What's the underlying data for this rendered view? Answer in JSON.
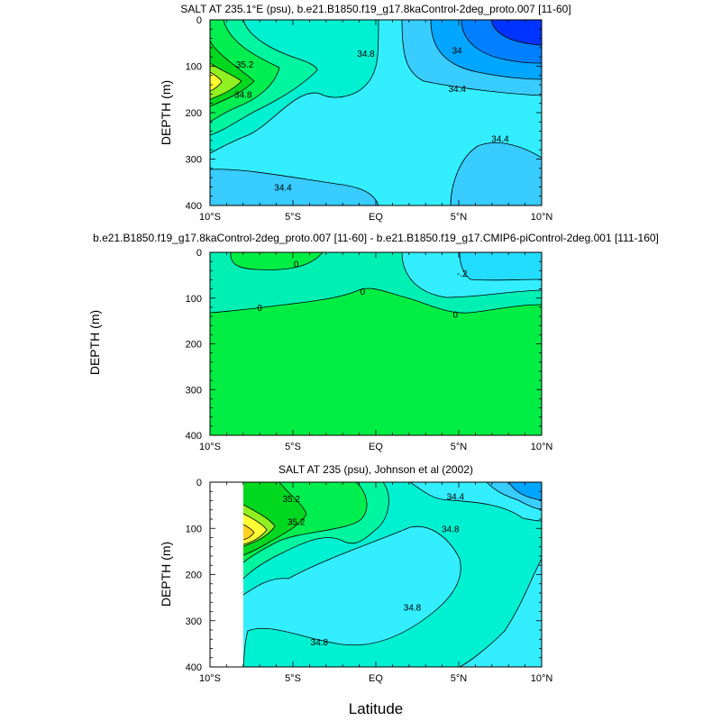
{
  "figure": {
    "xlabel": "Latitude",
    "shared_ylabel": "DEPTH (m)",
    "colors": {
      "s33_8": "#0033ff",
      "s34_0": "#0080ff",
      "s34_2": "#00a6ff",
      "s34_4": "#38ccff",
      "s34_6": "#33eeff",
      "s34_8": "#00f0d2",
      "s35_0": "#00f5a0",
      "s35_2": "#00ee50",
      "s35_4": "#00d820",
      "s35_6": "#90f020",
      "s35_8": "#ffff33",
      "s36_0": "#ffd21e",
      "d_pos": "#00ee44",
      "d_zero": "#00f0b4",
      "d_neg": "#33eeff",
      "d_neg2": "#22ddff",
      "missing": "#ffffff"
    }
  },
  "chart_data": [
    {
      "type": "contour",
      "title": "SALT AT 235.1°E (psu), b.e21.B1850.f19_g17.8kaControl-2deg_proto.007 [11-60]",
      "xlabel": "",
      "ylabel": "DEPTH (m)",
      "xlim": [
        -10,
        10
      ],
      "ylim": [
        400,
        0
      ],
      "x_ticks": [
        "10°S",
        "5°S",
        "EQ",
        "5°N",
        "10°N"
      ],
      "y_ticks": [
        "0",
        "100",
        "200",
        "300",
        "400"
      ],
      "contour_labels": [
        {
          "text": "35.2",
          "lat": -7.9,
          "depth": 95
        },
        {
          "text": "34.8",
          "lat": -0.6,
          "depth": 72
        },
        {
          "text": "34",
          "lat": 4.9,
          "depth": 65
        },
        {
          "text": "34.4",
          "lat": 4.9,
          "depth": 148
        },
        {
          "text": "34.8",
          "lat": -8.0,
          "depth": 160
        },
        {
          "text": "34.4",
          "lat": 7.5,
          "depth": 255
        },
        {
          "text": "34.4",
          "lat": -5.6,
          "depth": 360
        }
      ]
    },
    {
      "type": "contour",
      "title": "b.e21.B1850.f19_g17.8kaControl-2deg_proto.007 [11-60] - b.e21.B1850.f19_g17.CMIP6-piControl-2deg.001 [111-160]",
      "xlabel": "",
      "ylabel": "DEPTH (m)",
      "xlim": [
        -10,
        10
      ],
      "ylim": [
        400,
        0
      ],
      "x_ticks": [
        "10°S",
        "5°S",
        "EQ",
        "5°N",
        "10°N"
      ],
      "y_ticks": [
        "0",
        "100",
        "200",
        "300",
        "400"
      ],
      "contour_labels": [
        {
          "text": "0",
          "lat": -4.8,
          "depth": 25
        },
        {
          "text": "-.2",
          "lat": 5.2,
          "depth": 45
        },
        {
          "text": "0",
          "lat": -0.8,
          "depth": 85
        },
        {
          "text": "0",
          "lat": -7.0,
          "depth": 120
        },
        {
          "text": "0",
          "lat": 4.8,
          "depth": 135
        }
      ]
    },
    {
      "type": "contour",
      "title": "SALT AT 235 (psu), Johnson et al (2002)",
      "xlabel": "Latitude",
      "ylabel": "DEPTH (m)",
      "xlim": [
        -10,
        10
      ],
      "ylim": [
        400,
        0
      ],
      "x_ticks": [
        "10°S",
        "5°S",
        "EQ",
        "5°N",
        "10°N"
      ],
      "y_ticks": [
        "0",
        "100",
        "200",
        "300",
        "400"
      ],
      "missing_below_lat": -8,
      "contour_labels": [
        {
          "text": "35.2",
          "lat": -5.1,
          "depth": 35
        },
        {
          "text": "35.2",
          "lat": -4.8,
          "depth": 85
        },
        {
          "text": "34.4",
          "lat": 4.8,
          "depth": 30
        },
        {
          "text": "34.8",
          "lat": 4.5,
          "depth": 100
        },
        {
          "text": "34.8",
          "lat": 2.2,
          "depth": 270
        },
        {
          "text": "34.8",
          "lat": -3.4,
          "depth": 345
        }
      ]
    }
  ]
}
